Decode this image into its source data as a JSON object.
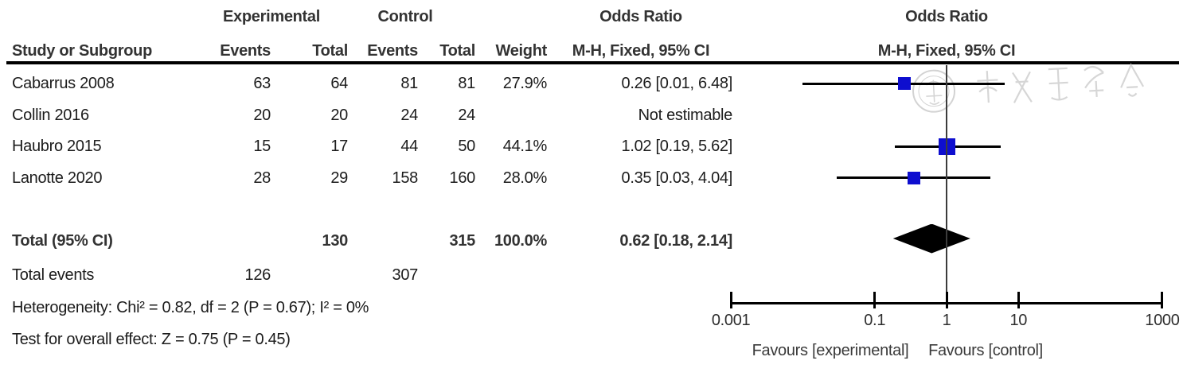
{
  "header": {
    "group_experimental": "Experimental",
    "group_control": "Control",
    "or_header_left": "Odds Ratio",
    "or_header_right": "Odds Ratio",
    "study_col": "Study or Subgroup",
    "events_col": "Events",
    "total_col": "Total",
    "weight_col": "Weight",
    "method_left": "M-H, Fixed, 95% CI",
    "method_right": "M-H, Fixed, 95% CI"
  },
  "chart_data": {
    "type": "forest_plot",
    "effect_measure": "Odds Ratio",
    "method": "M-H, Fixed, 95% CI",
    "x_axis": {
      "scale": "log",
      "ticks": [
        0.001,
        0.1,
        1,
        10,
        1000
      ],
      "tick_labels": [
        "0.001",
        "0.1",
        "1",
        "10",
        "1000"
      ],
      "range": [
        0.001,
        1000
      ]
    },
    "favours_left": "Favours [experimental]",
    "favours_right": "Favours [control]",
    "studies": [
      {
        "study": "Cabarrus 2008",
        "exp_events": "63",
        "exp_total": "64",
        "ctl_events": "81",
        "ctl_total": "81",
        "weight": "27.9%",
        "weight_pct": 27.9,
        "or_text": "0.26 [0.01, 6.48]",
        "or": 0.26,
        "ci_low": 0.01,
        "ci_high": 6.48,
        "estimable": true
      },
      {
        "study": "Collin 2016",
        "exp_events": "20",
        "exp_total": "20",
        "ctl_events": "24",
        "ctl_total": "24",
        "weight": "",
        "weight_pct": 0,
        "or_text": "Not estimable",
        "estimable": false
      },
      {
        "study": "Haubro 2015",
        "exp_events": "15",
        "exp_total": "17",
        "ctl_events": "44",
        "ctl_total": "50",
        "weight": "44.1%",
        "weight_pct": 44.1,
        "or_text": "1.02 [0.19, 5.62]",
        "or": 1.02,
        "ci_low": 0.19,
        "ci_high": 5.62,
        "estimable": true
      },
      {
        "study": "Lanotte 2020",
        "exp_events": "28",
        "exp_total": "29",
        "ctl_events": "158",
        "ctl_total": "160",
        "weight": "28.0%",
        "weight_pct": 28.0,
        "or_text": "0.35 [0.03, 4.04]",
        "or": 0.35,
        "ci_low": 0.03,
        "ci_high": 4.04,
        "estimable": true
      }
    ],
    "total": {
      "label": "Total (95% CI)",
      "exp_total": "130",
      "ctl_total": "315",
      "weight": "100.0%",
      "or_text": "0.62 [0.18, 2.14]",
      "or": 0.62,
      "ci_low": 0.18,
      "ci_high": 2.14
    },
    "total_events": {
      "label": "Total events",
      "exp_events": "126",
      "ctl_events": "307"
    },
    "heterogeneity": "Heterogeneity: Chi² = 0.82, df = 2 (P = 0.67); I² = 0%",
    "overall_effect": "Test for overall effect: Z = 0.75 (P = 0.45)"
  },
  "watermark": {
    "name": "chinese-society-seal-watermark"
  },
  "colors": {
    "marker_square": "#0e0ecf",
    "diamond": "#000000",
    "line": "#000000",
    "center_line": "#3c3c3c",
    "text": "#1c1c1c",
    "watermark": "#cccccc"
  }
}
